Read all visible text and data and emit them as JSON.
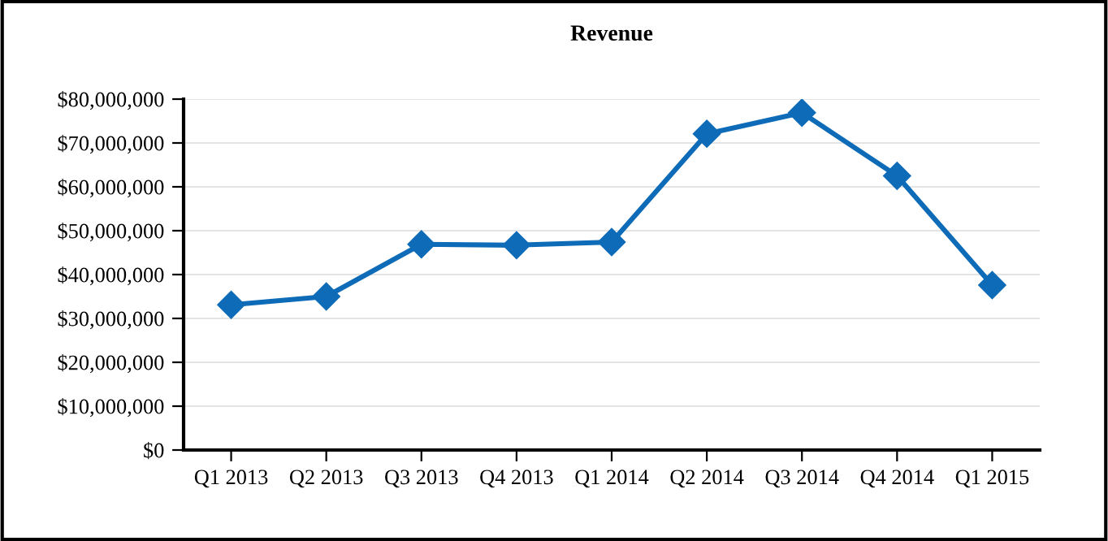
{
  "chart_data": {
    "type": "line",
    "title": "Revenue",
    "categories": [
      "Q1 2013",
      "Q2 2013",
      "Q3 2013",
      "Q4 2013",
      "Q1 2014",
      "Q2 2014",
      "Q3 2014",
      "Q4 2014",
      "Q1 2015"
    ],
    "series": [
      {
        "color": "#0e6bb8",
        "values": [
          33100000,
          35000000,
          46900000,
          46700000,
          47400000,
          72100000,
          76900000,
          62500000,
          37600000
        ]
      }
    ],
    "ylim": [
      0,
      80000000
    ],
    "yticks": [
      {
        "value": 0,
        "label": "$0"
      },
      {
        "value": 10000000,
        "label": "$10,000,000"
      },
      {
        "value": 20000000,
        "label": "$20,000,000"
      },
      {
        "value": 30000000,
        "label": "$30,000,000"
      },
      {
        "value": 40000000,
        "label": "$40,000,000"
      },
      {
        "value": 50000000,
        "label": "$50,000,000"
      },
      {
        "value": 60000000,
        "label": "$60,000,000"
      },
      {
        "value": 70000000,
        "label": "$70,000,000"
      },
      {
        "value": 80000000,
        "label": "$80,000,000"
      }
    ],
    "grid": "y",
    "marker": "diamond",
    "line_style": "solid"
  }
}
